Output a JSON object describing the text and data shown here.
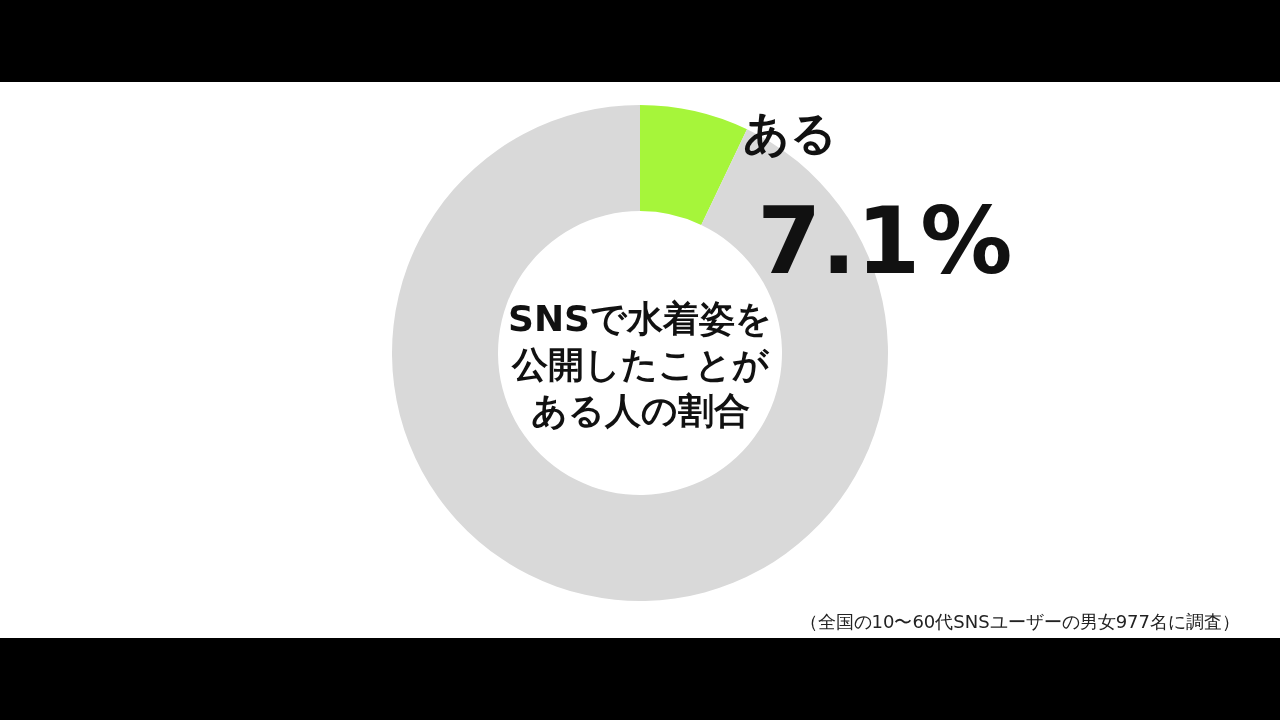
{
  "chart_data": {
    "type": "donut",
    "title": "SNSで水着姿を公開したことがある人の割合",
    "categories": [
      "ある",
      null
    ],
    "values": [
      7.1,
      92.9
    ],
    "colors": [
      "#a6f53a",
      "#d9d9d9"
    ],
    "value_labels": [
      "7.1%",
      null
    ],
    "annotations": [
      "（全国の10〜60代SNSユーザーの男女977名に調査）"
    ]
  }
}
